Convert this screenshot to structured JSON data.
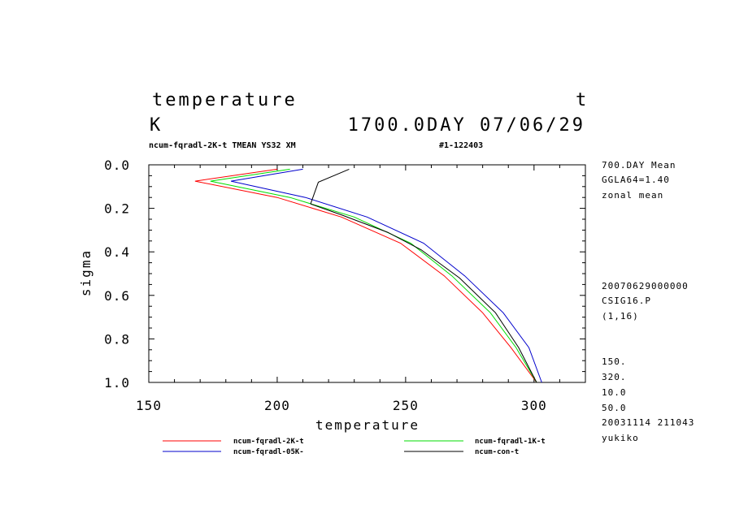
{
  "header": {
    "title_left": "temperature",
    "title_right": "t",
    "unit": "K",
    "time_label": "1700.0DAY 07/06/29",
    "run_info": "ncum-fqradl-2K-t TMEAN YS32 XM",
    "run_id": "#1-122403"
  },
  "side_info_top": [
    "700.DAY Mean",
    "GGLA64=1.40",
    "zonal mean"
  ],
  "side_info_mid": [
    "20070629000000",
    "CSIG16.P",
    "(1,16)"
  ],
  "side_info_bottom": [
    "150.",
    "320.",
    "10.0",
    "50.0",
    "20031114 211043",
    "yukiko"
  ],
  "chart_data": {
    "type": "line",
    "xlabel": "temperature",
    "ylabel": "sigma",
    "xlim": [
      150,
      320
    ],
    "ylim": [
      1.0,
      0.0
    ],
    "y_inverted": true,
    "x_ticks": [
      "150",
      "200",
      "250",
      "300"
    ],
    "y_ticks": [
      "0.0",
      "0.2",
      "0.4",
      "0.6",
      "0.8",
      "1.0"
    ],
    "grid": false,
    "legend_position": "bottom",
    "series": [
      {
        "name": "ncum-fqradl-2K-t",
        "color": "#ff0000",
        "x": [
          200,
          168,
          200,
          225,
          248,
          265,
          280,
          291,
          301
        ],
        "y": [
          0.02,
          0.075,
          0.15,
          0.24,
          0.36,
          0.51,
          0.68,
          0.84,
          1.0
        ]
      },
      {
        "name": "ncum-fqradl-1K-t",
        "color": "#00dd00",
        "x": [
          205,
          174,
          205,
          230,
          252,
          268,
          283,
          293,
          301
        ],
        "y": [
          0.02,
          0.075,
          0.15,
          0.24,
          0.36,
          0.51,
          0.68,
          0.84,
          1.0
        ]
      },
      {
        "name": "ncum-fqradl-05K-",
        "color": "#0000cc",
        "x": [
          210,
          182,
          211,
          235,
          257,
          273,
          288,
          298,
          303
        ],
        "y": [
          0.02,
          0.075,
          0.15,
          0.24,
          0.36,
          0.51,
          0.68,
          0.84,
          1.0
        ]
      },
      {
        "name": "ncum-con-t",
        "color": "#000000",
        "x": [
          213,
          225,
          243,
          256,
          271,
          285,
          294,
          301
        ],
        "y": [
          0.18,
          0.23,
          0.31,
          0.39,
          0.52,
          0.68,
          0.84,
          1.0
        ]
      }
    ],
    "annotation_line": {
      "x": [
        213,
        216,
        228
      ],
      "y": [
        0.18,
        0.08,
        0.02
      ]
    }
  }
}
